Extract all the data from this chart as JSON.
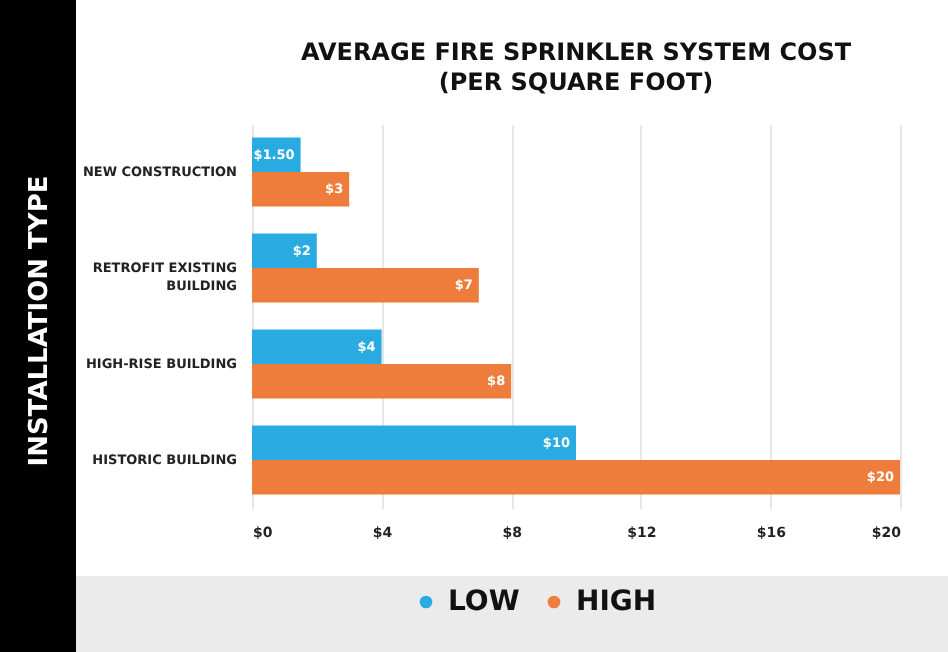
{
  "chart_data": {
    "type": "bar",
    "orientation": "horizontal",
    "title": "AVERAGE FIRE SPRINKLER SYSTEM COST (PER SQUARE FOOT)",
    "ylabel": "INSTALLATION TYPE",
    "categories": [
      "NEW CONSTRUCTION",
      "RETROFIT EXISTING BUILDING",
      "HIGH-RISE BUILDING",
      "HISTORIC BUILDING"
    ],
    "series": [
      {
        "name": "LOW",
        "color": "#29abe2",
        "values": [
          1.5,
          2,
          4,
          10
        ],
        "value_labels": [
          "$1.50",
          "$2",
          "$4",
          "$10"
        ]
      },
      {
        "name": "HIGH",
        "color": "#ee7d3b",
        "values": [
          3,
          7,
          8,
          20
        ],
        "value_labels": [
          "$3",
          "$7",
          "$8",
          "$20"
        ]
      }
    ],
    "xlim": [
      0,
      20
    ],
    "xticks": [
      {
        "value": 0,
        "label": "$0"
      },
      {
        "value": 4,
        "label": "$4"
      },
      {
        "value": 8,
        "label": "$8"
      },
      {
        "value": 12,
        "label": "$12"
      },
      {
        "value": 16,
        "label": "$16"
      },
      {
        "value": 20,
        "label": "$20"
      }
    ],
    "grid": "x",
    "legend": "bottom"
  }
}
